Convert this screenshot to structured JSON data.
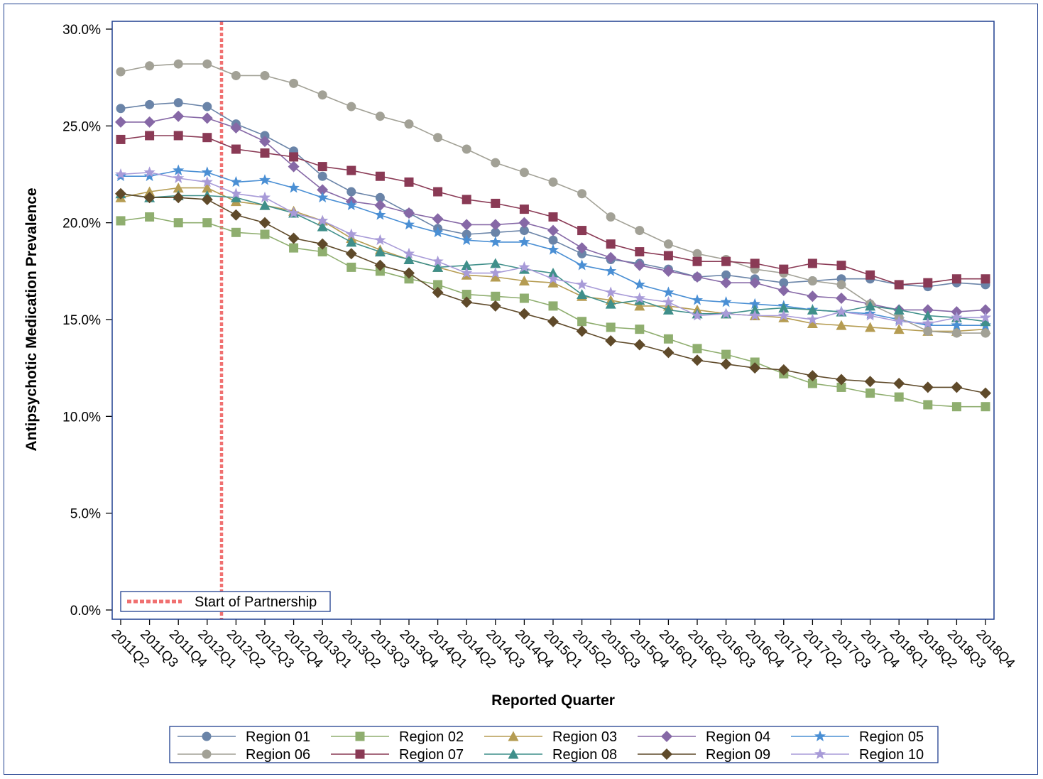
{
  "chart_data": {
    "type": "line",
    "title": "",
    "xlabel": "Reported Quarter",
    "ylabel": "Antipsychotic Medication Prevalence",
    "ylim": [
      0,
      30
    ],
    "y_ticks": [
      "0.0%",
      "5.0%",
      "10.0%",
      "15.0%",
      "20.0%",
      "25.0%",
      "30.0%"
    ],
    "y_tick_values": [
      0,
      5,
      10,
      15,
      20,
      25,
      30
    ],
    "categories": [
      "2011Q2",
      "2011Q3",
      "2011Q4",
      "2012Q1",
      "2012Q2",
      "2012Q3",
      "2012Q4",
      "2013Q1",
      "2013Q2",
      "2013Q3",
      "2013Q4",
      "2014Q1",
      "2014Q2",
      "2014Q3",
      "2014Q4",
      "2015Q1",
      "2015Q2",
      "2015Q3",
      "2015Q4",
      "2016Q1",
      "2016Q2",
      "2016Q3",
      "2016Q4",
      "2017Q1",
      "2017Q2",
      "2017Q3",
      "2017Q4",
      "2018Q1",
      "2018Q2",
      "2018Q3",
      "2018Q4"
    ],
    "grid": false,
    "reference_line": {
      "label": "Start of Partnership",
      "x_between": [
        "2012Q1",
        "2012Q2"
      ],
      "color": "#f07070",
      "style": "dotted"
    },
    "legend_position": "bottom",
    "series": [
      {
        "name": "Region 01",
        "color": "#6a84a8",
        "marker": "circle",
        "values": [
          25.9,
          26.1,
          26.2,
          26.0,
          25.1,
          24.5,
          23.7,
          22.4,
          21.6,
          21.3,
          20.5,
          19.7,
          19.4,
          19.5,
          19.6,
          19.1,
          18.4,
          18.1,
          17.9,
          17.6,
          17.2,
          17.3,
          17.1,
          16.9,
          17.0,
          17.1,
          17.1,
          16.8,
          16.7,
          16.9,
          16.8
        ]
      },
      {
        "name": "Region 02",
        "color": "#8fae6f",
        "marker": "square",
        "values": [
          20.1,
          20.3,
          20.0,
          20.0,
          19.5,
          19.4,
          18.7,
          18.5,
          17.7,
          17.5,
          17.1,
          16.8,
          16.3,
          16.2,
          16.1,
          15.7,
          14.9,
          14.6,
          14.5,
          14.0,
          13.5,
          13.2,
          12.8,
          12.2,
          11.7,
          11.5,
          11.2,
          11.0,
          10.6,
          10.5,
          10.5
        ]
      },
      {
        "name": "Region 03",
        "color": "#b59c52",
        "marker": "triangle",
        "values": [
          21.3,
          21.6,
          21.8,
          21.8,
          21.1,
          20.9,
          20.6,
          20.1,
          19.2,
          18.6,
          18.1,
          17.7,
          17.3,
          17.2,
          17.0,
          16.9,
          16.2,
          16.0,
          15.7,
          15.7,
          15.5,
          15.3,
          15.2,
          15.1,
          14.8,
          14.7,
          14.6,
          14.5,
          14.4,
          14.4,
          14.5
        ]
      },
      {
        "name": "Region 04",
        "color": "#8668a6",
        "marker": "diamond",
        "values": [
          25.2,
          25.2,
          25.5,
          25.4,
          24.9,
          24.2,
          22.9,
          21.7,
          21.1,
          20.9,
          20.5,
          20.2,
          19.9,
          19.9,
          20.0,
          19.6,
          18.7,
          18.2,
          17.8,
          17.5,
          17.2,
          16.9,
          16.9,
          16.5,
          16.2,
          16.1,
          15.8,
          15.5,
          15.5,
          15.4,
          15.5
        ]
      },
      {
        "name": "Region 05",
        "color": "#4a8fd4",
        "marker": "star",
        "values": [
          22.4,
          22.4,
          22.7,
          22.6,
          22.1,
          22.2,
          21.8,
          21.3,
          20.9,
          20.4,
          19.9,
          19.5,
          19.1,
          19.0,
          19.0,
          18.6,
          17.8,
          17.5,
          16.8,
          16.4,
          16.0,
          15.9,
          15.8,
          15.7,
          15.5,
          15.4,
          15.3,
          15.0,
          14.7,
          14.7,
          14.7
        ]
      },
      {
        "name": "Region 06",
        "color": "#a2a196",
        "marker": "circle",
        "values": [
          27.8,
          28.1,
          28.2,
          28.2,
          27.6,
          27.6,
          27.2,
          26.6,
          26.0,
          25.5,
          25.1,
          24.4,
          23.8,
          23.1,
          22.6,
          22.1,
          21.5,
          20.3,
          19.6,
          18.9,
          18.4,
          18.1,
          17.6,
          17.4,
          17.0,
          16.8,
          15.8,
          15.1,
          14.4,
          14.3,
          14.3
        ]
      },
      {
        "name": "Region 07",
        "color": "#8a3a55",
        "marker": "square",
        "values": [
          24.3,
          24.5,
          24.5,
          24.4,
          23.8,
          23.6,
          23.4,
          22.9,
          22.7,
          22.4,
          22.1,
          21.6,
          21.2,
          21.0,
          20.7,
          20.3,
          19.6,
          18.9,
          18.5,
          18.3,
          18.0,
          18.0,
          17.9,
          17.6,
          17.9,
          17.8,
          17.3,
          16.8,
          16.9,
          17.1,
          17.1
        ]
      },
      {
        "name": "Region 08",
        "color": "#3f8f8a",
        "marker": "triangle",
        "values": [
          21.5,
          21.3,
          21.4,
          21.4,
          21.3,
          20.9,
          20.5,
          19.8,
          19.0,
          18.5,
          18.1,
          17.7,
          17.8,
          17.9,
          17.6,
          17.4,
          16.3,
          15.8,
          16.0,
          15.5,
          15.3,
          15.3,
          15.5,
          15.6,
          15.5,
          15.4,
          15.7,
          15.5,
          15.2,
          15.1,
          14.9
        ]
      },
      {
        "name": "Region 09",
        "color": "#5f4a2a",
        "marker": "diamond",
        "values": [
          21.5,
          21.3,
          21.3,
          21.2,
          20.4,
          20.0,
          19.2,
          18.9,
          18.4,
          17.8,
          17.4,
          16.4,
          15.9,
          15.7,
          15.3,
          14.9,
          14.4,
          13.9,
          13.7,
          13.3,
          12.9,
          12.7,
          12.5,
          12.4,
          12.1,
          11.9,
          11.8,
          11.7,
          11.5,
          11.5,
          11.2
        ]
      },
      {
        "name": "Region 10",
        "color": "#a89bd8",
        "marker": "star",
        "values": [
          22.5,
          22.6,
          22.3,
          22.1,
          21.5,
          21.3,
          20.5,
          20.1,
          19.4,
          19.1,
          18.4,
          18.0,
          17.4,
          17.4,
          17.7,
          17.1,
          16.8,
          16.4,
          16.1,
          15.9,
          15.2,
          15.3,
          15.2,
          15.2,
          15.0,
          15.4,
          15.2,
          14.9,
          14.8,
          15.1,
          15.1
        ]
      }
    ]
  }
}
